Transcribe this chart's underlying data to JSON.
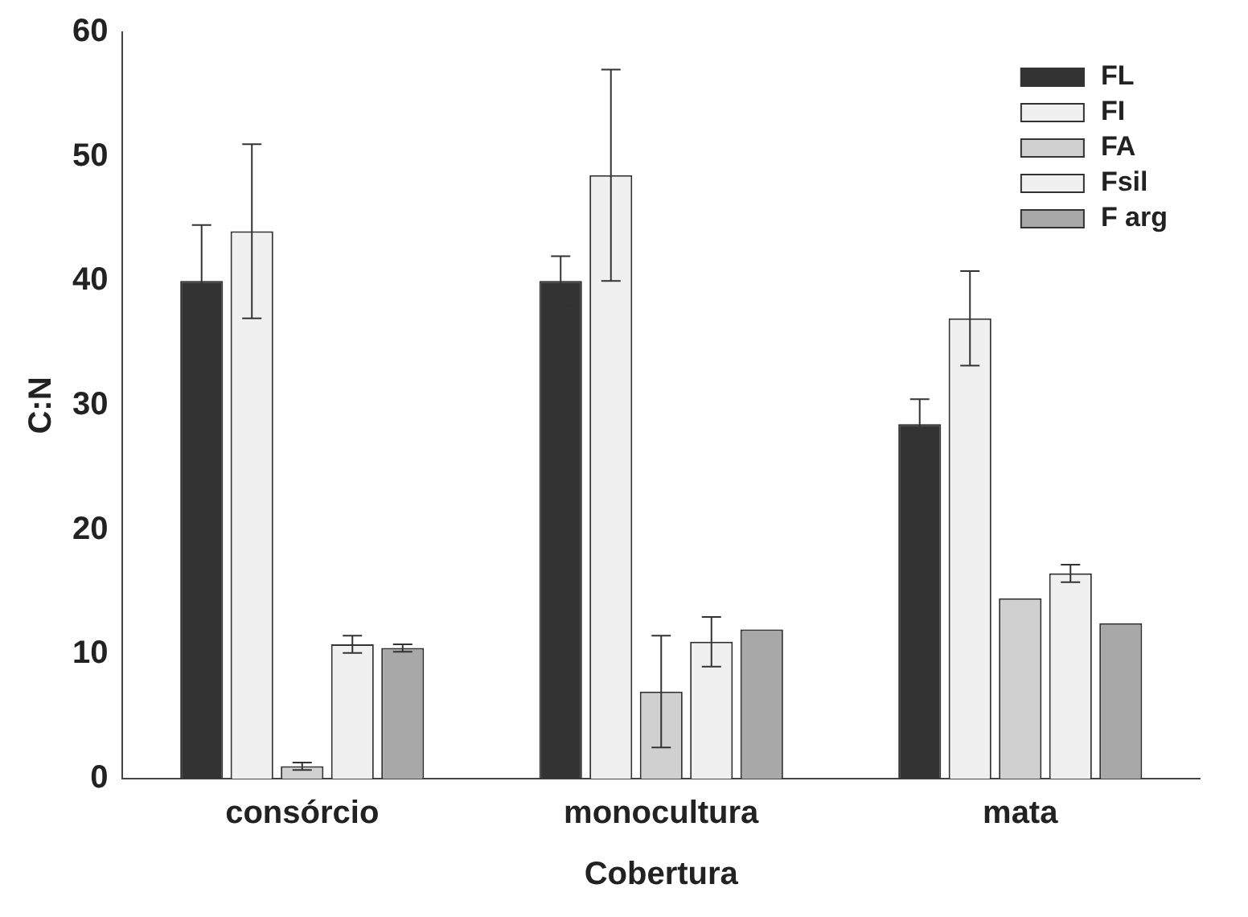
{
  "chart_data": {
    "type": "bar",
    "xlabel": "Cobertura",
    "ylabel": "C:N",
    "categories": [
      "consórcio",
      "monocultura",
      "mata"
    ],
    "series": [
      {
        "name": "FL",
        "color": "#333333",
        "values": [
          40,
          40,
          28.5
        ],
        "errors": [
          4.5,
          2,
          2
        ]
      },
      {
        "name": "FI",
        "color": "#f0f0f0",
        "values": [
          44,
          48.5,
          37
        ],
        "errors": [
          7,
          8.5,
          3.8
        ]
      },
      {
        "name": "FA",
        "color": "#d0d0d0",
        "values": [
          1,
          7,
          14.5
        ],
        "errors": [
          0.3,
          4.5,
          null
        ]
      },
      {
        "name": "Fsil",
        "color": "#f0f0f0",
        "values": [
          10.8,
          11,
          16.5
        ],
        "errors": [
          0.7,
          2,
          0.7
        ]
      },
      {
        "name": "F arg",
        "color": "#a8a8a8",
        "values": [
          10.5,
          12,
          12.5
        ],
        "errors": [
          0.3,
          null,
          null
        ]
      }
    ],
    "ylim": [
      0,
      60
    ],
    "yticks": [
      0,
      10,
      20,
      30,
      40,
      50,
      60
    ],
    "grid": false,
    "legend": "top right"
  }
}
